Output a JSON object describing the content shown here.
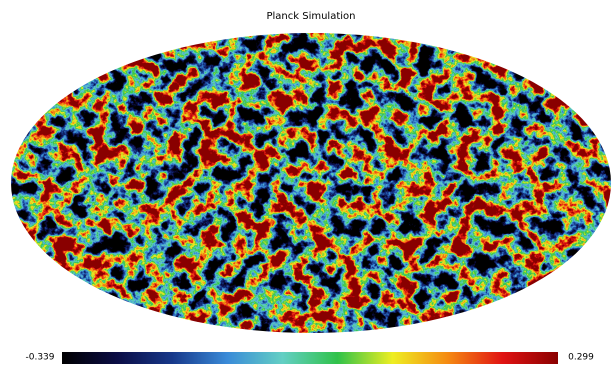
{
  "title": "Planck Simulation",
  "colorbar": {
    "min": -0.339,
    "max": 0.299,
    "colormap": [
      "#000000",
      "#0b0d45",
      "#17388a",
      "#3a8bd8",
      "#63cfc4",
      "#30c24a",
      "#eeee22",
      "#f58a12",
      "#e01212",
      "#8a0000"
    ]
  }
}
